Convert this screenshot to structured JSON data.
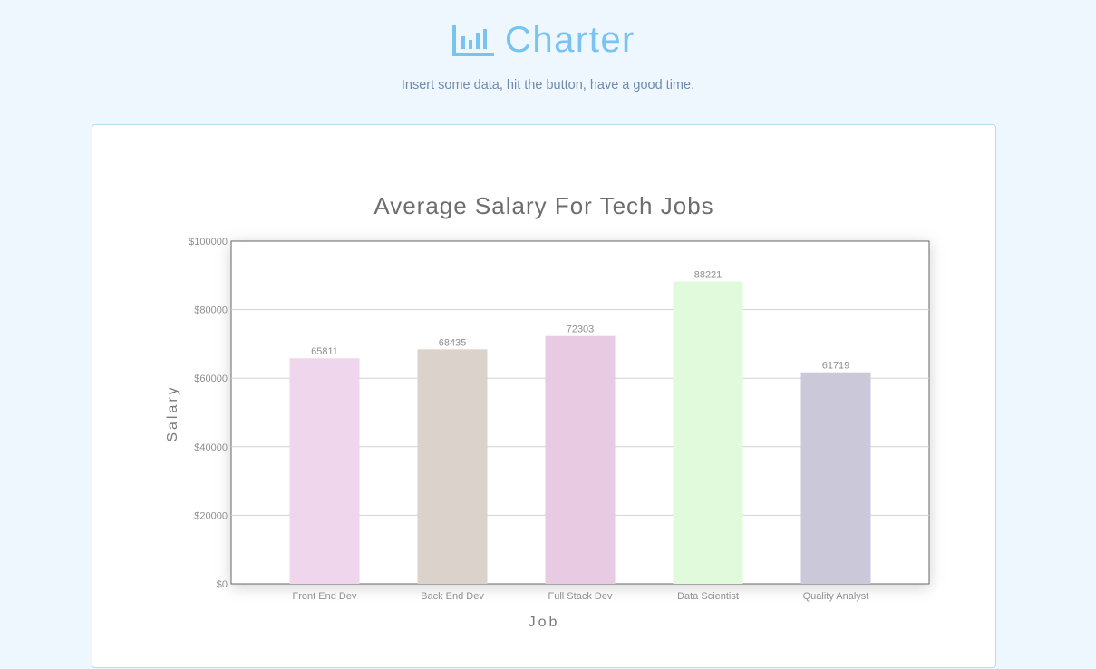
{
  "header": {
    "title": "Charter",
    "tagline": "Insert some data, hit the button, have a good time.",
    "logo_icon": "bar-chart-icon",
    "accent_color": "#78c3ef"
  },
  "chart_data": {
    "type": "bar",
    "title": "Average Salary For Tech Jobs",
    "xlabel": "Job",
    "ylabel": "Salary",
    "categories": [
      "Front End Dev",
      "Back End Dev",
      "Full Stack Dev",
      "Data Scientist",
      "Quality Analyst"
    ],
    "values": [
      65811,
      68435,
      72303,
      88221,
      61719
    ],
    "value_labels": [
      "65811",
      "68435",
      "72303",
      "88221",
      "61719"
    ],
    "colors": [
      "#efd6ec",
      "#dcd2cc",
      "#e8cae2",
      "#e0fadb",
      "#cbc9d9"
    ],
    "ylim": [
      0,
      100000
    ],
    "yticks": [
      0,
      20000,
      40000,
      60000,
      80000,
      100000
    ],
    "ytick_labels": [
      "$0",
      "$20000",
      "$40000",
      "$60000",
      "$80000",
      "$100000"
    ],
    "grid": true,
    "legend": "none"
  }
}
